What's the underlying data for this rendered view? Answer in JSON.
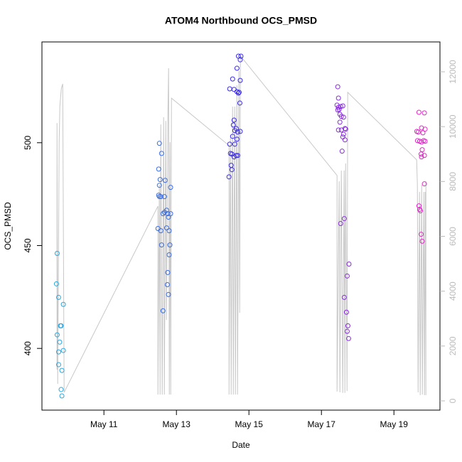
{
  "chart_data": {
    "type": "scatter",
    "title": "ATOM4 Northbound OCS_PMSD",
    "x_label": "Date",
    "y_label": "OCS_PMSD",
    "xlim": [
      9.29,
      20.27
    ],
    "xticks": [
      {
        "value": 11,
        "label": "May 11"
      },
      {
        "value": 13,
        "label": "May 13"
      },
      {
        "value": 15,
        "label": "May 15"
      },
      {
        "value": 17,
        "label": "May 17"
      },
      {
        "value": 19,
        "label": "May 19"
      }
    ],
    "ylim": [
      370,
      549
    ],
    "yticks": [
      400,
      450,
      500
    ],
    "y2lim": [
      -337,
      13089
    ],
    "y2ticks": [
      0,
      2000,
      4000,
      6000,
      8000,
      10000,
      12000
    ],
    "y2_color": "#bbbbbb",
    "series": [
      {
        "type": "scatter",
        "color": "#2aa7de",
        "x": [
          9.71,
          9.69,
          9.75,
          9.71,
          9.8,
          9.82,
          9.88,
          9.78,
          9.75,
          9.88,
          9.75,
          9.84,
          9.82,
          9.84
        ],
        "values": [
          446.2,
          431.4,
          424.8,
          406.6,
          411,
          411,
          421.4,
          403.1,
          398.3,
          399,
          392.1,
          389.3,
          380,
          376.9
        ]
      },
      {
        "type": "scatter",
        "color": "#3b6fe6",
        "x": [
          12.53,
          12.59,
          12.51,
          12.55,
          12.69,
          12.53,
          12.84,
          12.51,
          12.53,
          12.57,
          12.67,
          12.73,
          12.67,
          12.63,
          12.76,
          12.84,
          12.78,
          12.49,
          12.73,
          12.57,
          12.8,
          12.59,
          12.82,
          12.8,
          12.76,
          12.75,
          12.78,
          12.63
        ],
        "values": [
          499.7,
          494.8,
          487.2,
          482.1,
          481.7,
          479.3,
          478.3,
          474.5,
          473.8,
          473.8,
          473.8,
          467.2,
          466.2,
          465.5,
          465.5,
          465.5,
          463.8,
          458.3,
          458.6,
          457.2,
          457.2,
          450.3,
          450.3,
          445.5,
          436.9,
          431,
          426.2,
          418.3
        ]
      },
      {
        "type": "scatter",
        "color": "#3a2be8",
        "x": [
          14.71,
          14.78,
          14.76,
          14.67,
          14.55,
          14.76,
          14.47,
          14.59,
          14.67,
          14.73,
          14.71,
          14.75,
          14.59,
          14.57,
          14.65,
          14.61,
          14.76,
          14.69,
          14.55,
          14.67,
          14.47,
          14.61,
          14.49,
          14.53,
          14.65,
          14.69,
          14.59,
          14.51,
          14.53,
          14.45
        ],
        "values": [
          542.1,
          542.1,
          540.3,
          536.2,
          531,
          530.3,
          526.2,
          525.9,
          524.8,
          524.5,
          524.1,
          519.3,
          511,
          508.6,
          506.9,
          505.9,
          505.5,
          505.2,
          503.1,
          501.7,
          499.3,
          499.3,
          494.8,
          494.5,
          493.8,
          493.8,
          493.1,
          489,
          486.9,
          483.4
        ]
      },
      {
        "type": "scatter",
        "color": "#8a2be2",
        "x": [
          17.45,
          17.47,
          17.43,
          17.47,
          17.53,
          17.59,
          17.49,
          17.45,
          17.51,
          17.55,
          17.61,
          17.51,
          17.47,
          17.55,
          17.65,
          17.67,
          17.61,
          17.59,
          17.65,
          17.57,
          17.53,
          17.63,
          17.76,
          17.71,
          17.63,
          17.69,
          17.73,
          17.71,
          17.75
        ],
        "values": [
          527.2,
          521.7,
          518.3,
          517.2,
          517.6,
          517.9,
          516.2,
          515.9,
          513.8,
          512.8,
          512.4,
          510,
          506.2,
          506.2,
          506.9,
          506.6,
          504.1,
          502.8,
          501.4,
          495.9,
          460.7,
          463.1,
          441,
          435.2,
          424.8,
          417.6,
          411,
          408.3,
          404.8
        ]
      },
      {
        "type": "scatter",
        "color": "#e028c8",
        "x": [
          19.69,
          19.84,
          19.76,
          19.86,
          19.63,
          19.67,
          19.8,
          19.65,
          19.71,
          19.82,
          19.76,
          19.86,
          19.78,
          19.75,
          19.84,
          19.76,
          19.84,
          19.69,
          19.71,
          19.73,
          19.75,
          19.78
        ],
        "values": [
          514.8,
          514.5,
          507.2,
          506.6,
          505.5,
          505.2,
          504.8,
          501,
          500.7,
          501,
          500.3,
          500.7,
          496.6,
          494.5,
          493.8,
          493.1,
          480,
          469.3,
          467.6,
          466.9,
          455.5,
          452.1
        ]
      },
      {
        "type": "line",
        "axis": "y2",
        "color": "#c8c8c8",
        "x": [
          9.706,
          9.706,
          9.725,
          9.765,
          9.784,
          9.824,
          9.863,
          9.902,
          12.49,
          12.49,
          12.529,
          12.549,
          12.569,
          12.608,
          12.647,
          12.667,
          12.706,
          12.725,
          12.765,
          12.784,
          12.804,
          12.824,
          12.843,
          12.863,
          14.451,
          14.451,
          14.49,
          14.51,
          14.549,
          14.569,
          14.608,
          14.627,
          14.667,
          14.686,
          14.725,
          14.745,
          14.765,
          14.784,
          17.431,
          17.431,
          17.49,
          17.51,
          17.549,
          17.588,
          17.627,
          17.647,
          17.667,
          17.706,
          17.725,
          19.627,
          19.647,
          19.667,
          19.706,
          19.725,
          19.765,
          19.784,
          19.824,
          19.843,
          19.863,
          19.882,
          19.882
        ],
        "values": [
          1140,
          10130,
          620,
          9430,
          10730,
          11380,
          11560,
          310,
          7100,
          230,
          7880,
          230,
          10080,
          230,
          10340,
          230,
          10210,
          2950,
          10470,
          12130,
          230,
          9430,
          230,
          11040,
          9310,
          230,
          9690,
          230,
          10730,
          230,
          10730,
          230,
          11510,
          230,
          12030,
          3210,
          12490,
          12550,
          8220,
          340,
          8010,
          310,
          8400,
          290,
          8400,
          290,
          8660,
          360,
          11250,
          8790,
          7880,
          310,
          7620,
          210,
          7880,
          230,
          7620,
          210,
          7620,
          210,
          8010
        ]
      }
    ]
  }
}
